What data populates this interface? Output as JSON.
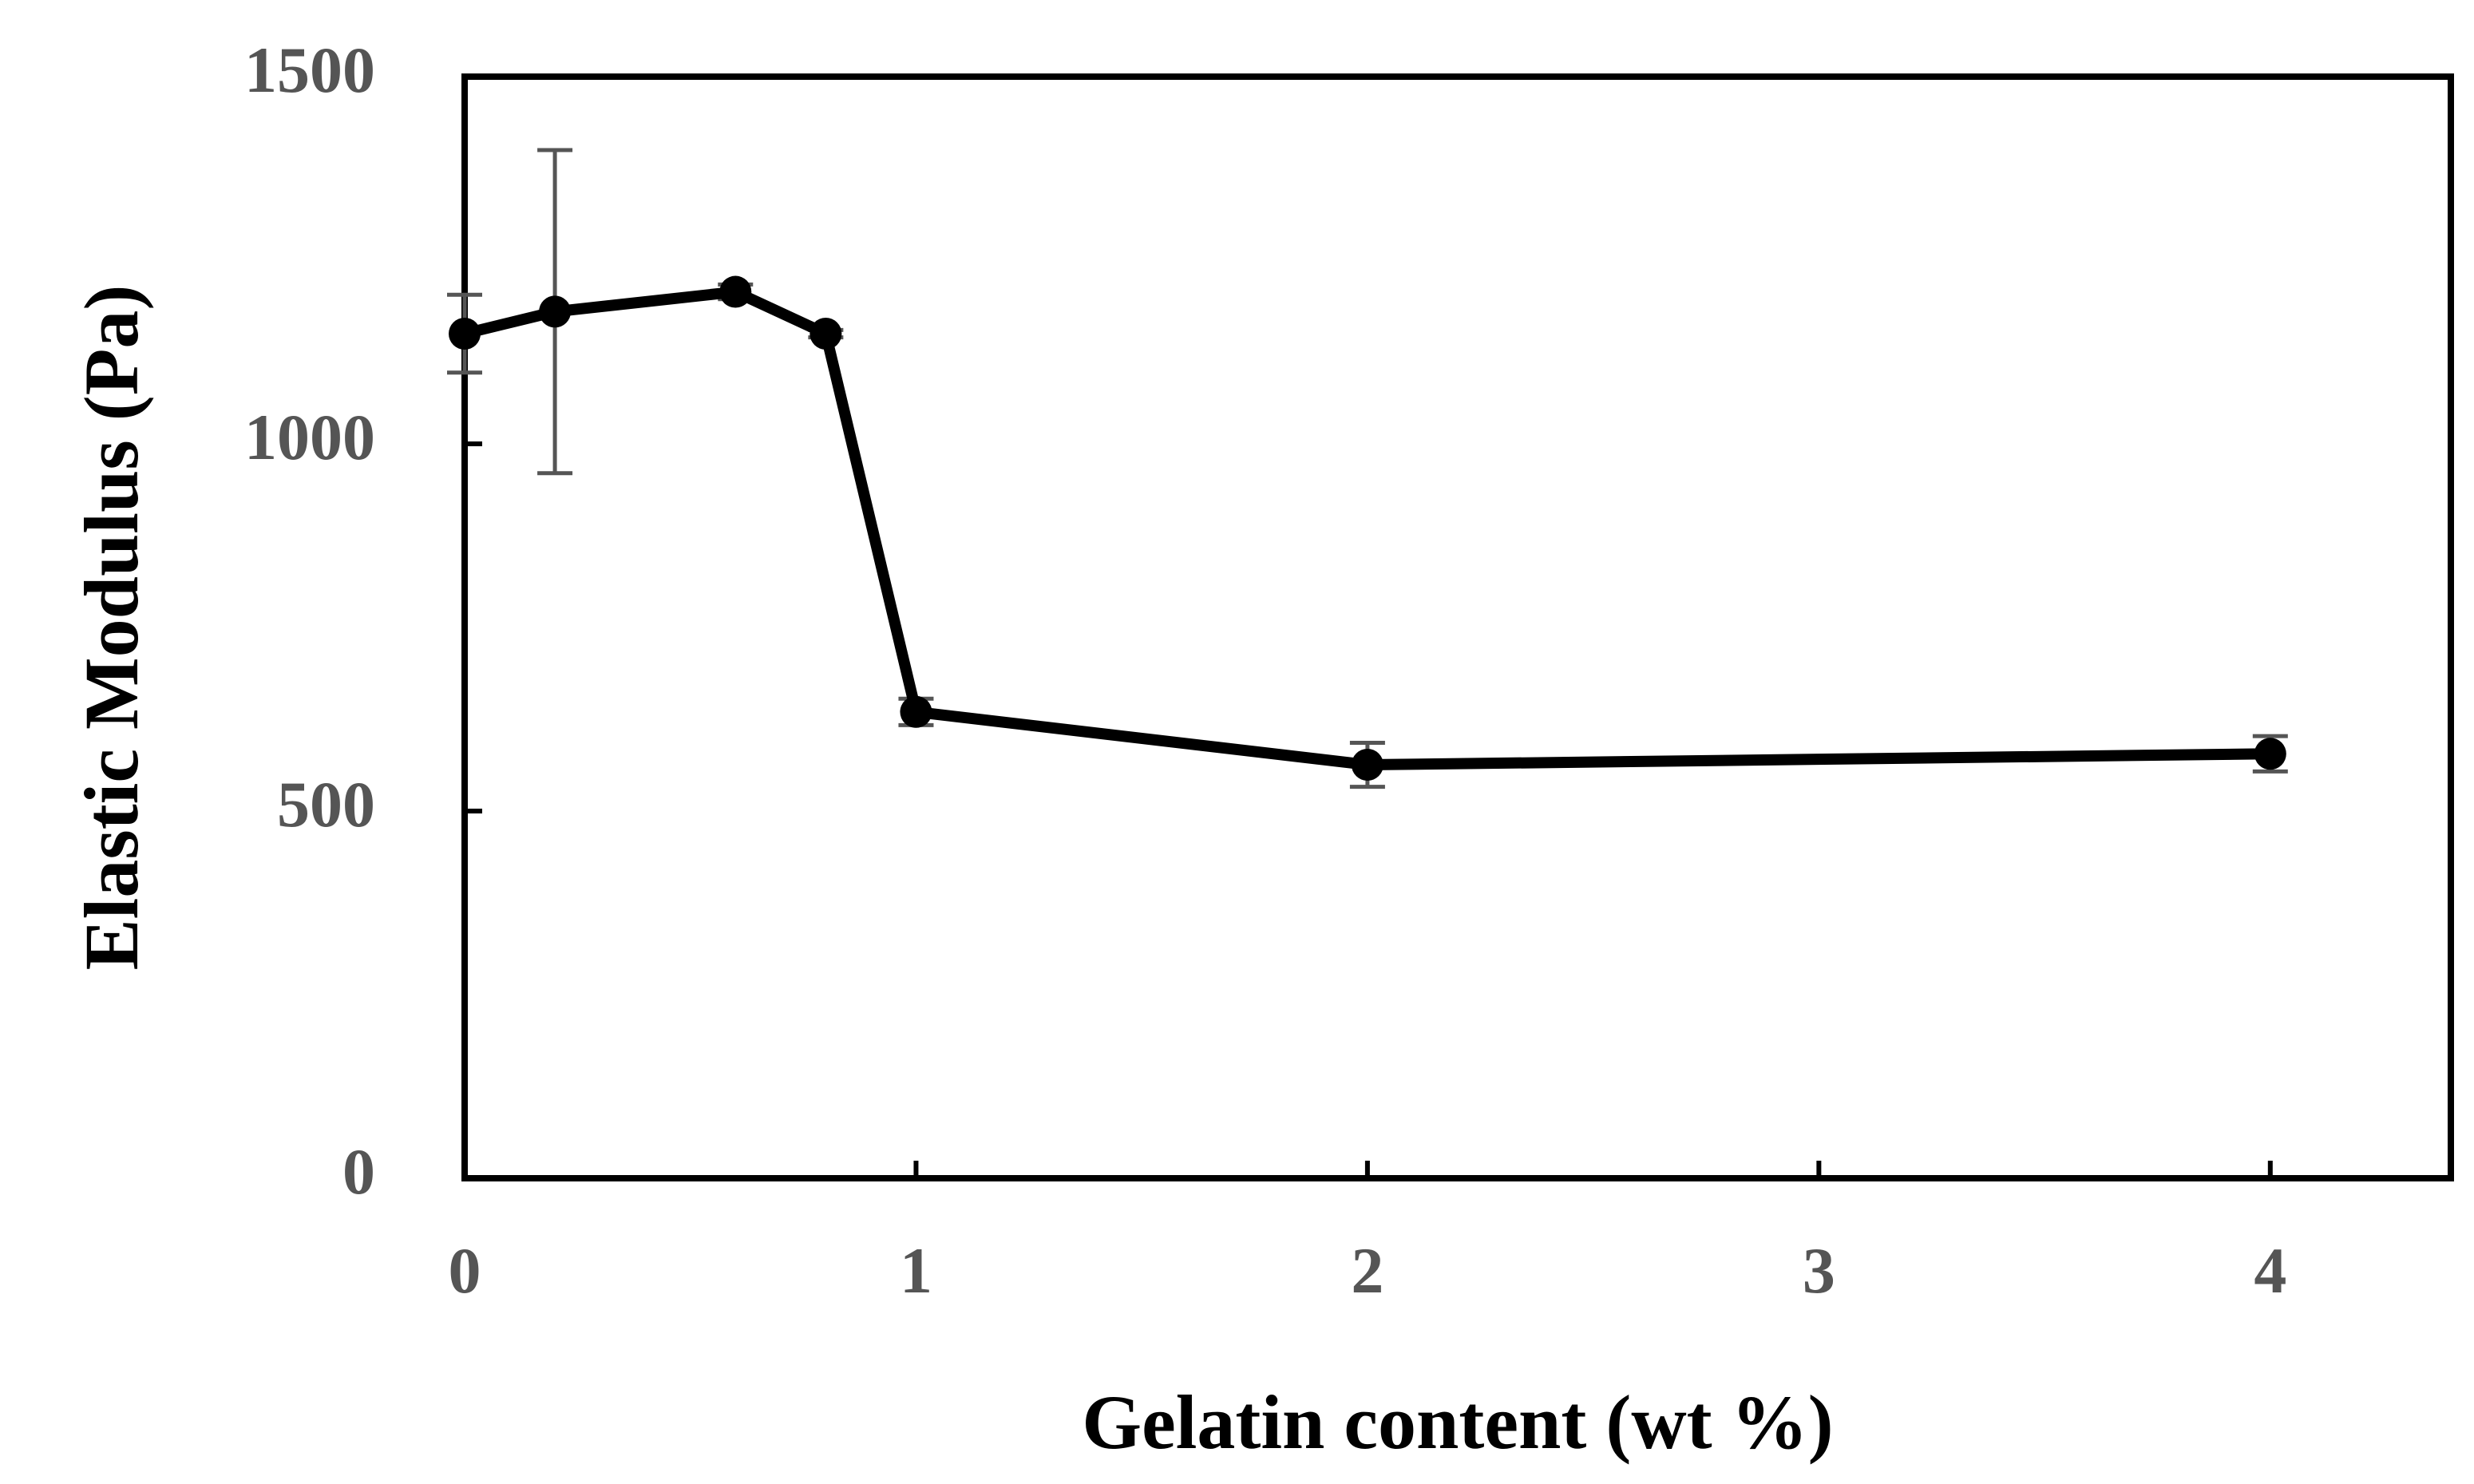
{
  "chart_data": {
    "type": "line",
    "xlabel": "Gelatin content (wt %)",
    "ylabel": "Elastic Modulus (Pa)",
    "x": [
      0,
      0.2,
      0.6,
      0.8,
      1,
      2,
      4
    ],
    "values": [
      1150,
      1180,
      1207,
      1150,
      635,
      563,
      578
    ],
    "errors": [
      53,
      220,
      10,
      5,
      18,
      30,
      24
    ],
    "color": "#000000",
    "error_color": "#555555",
    "xlim": [
      0,
      4.4
    ],
    "xticks": [
      0,
      1,
      2,
      3,
      4
    ],
    "ylim": [
      0,
      1500
    ],
    "yticks": [
      0,
      500,
      1000,
      1500
    ]
  }
}
